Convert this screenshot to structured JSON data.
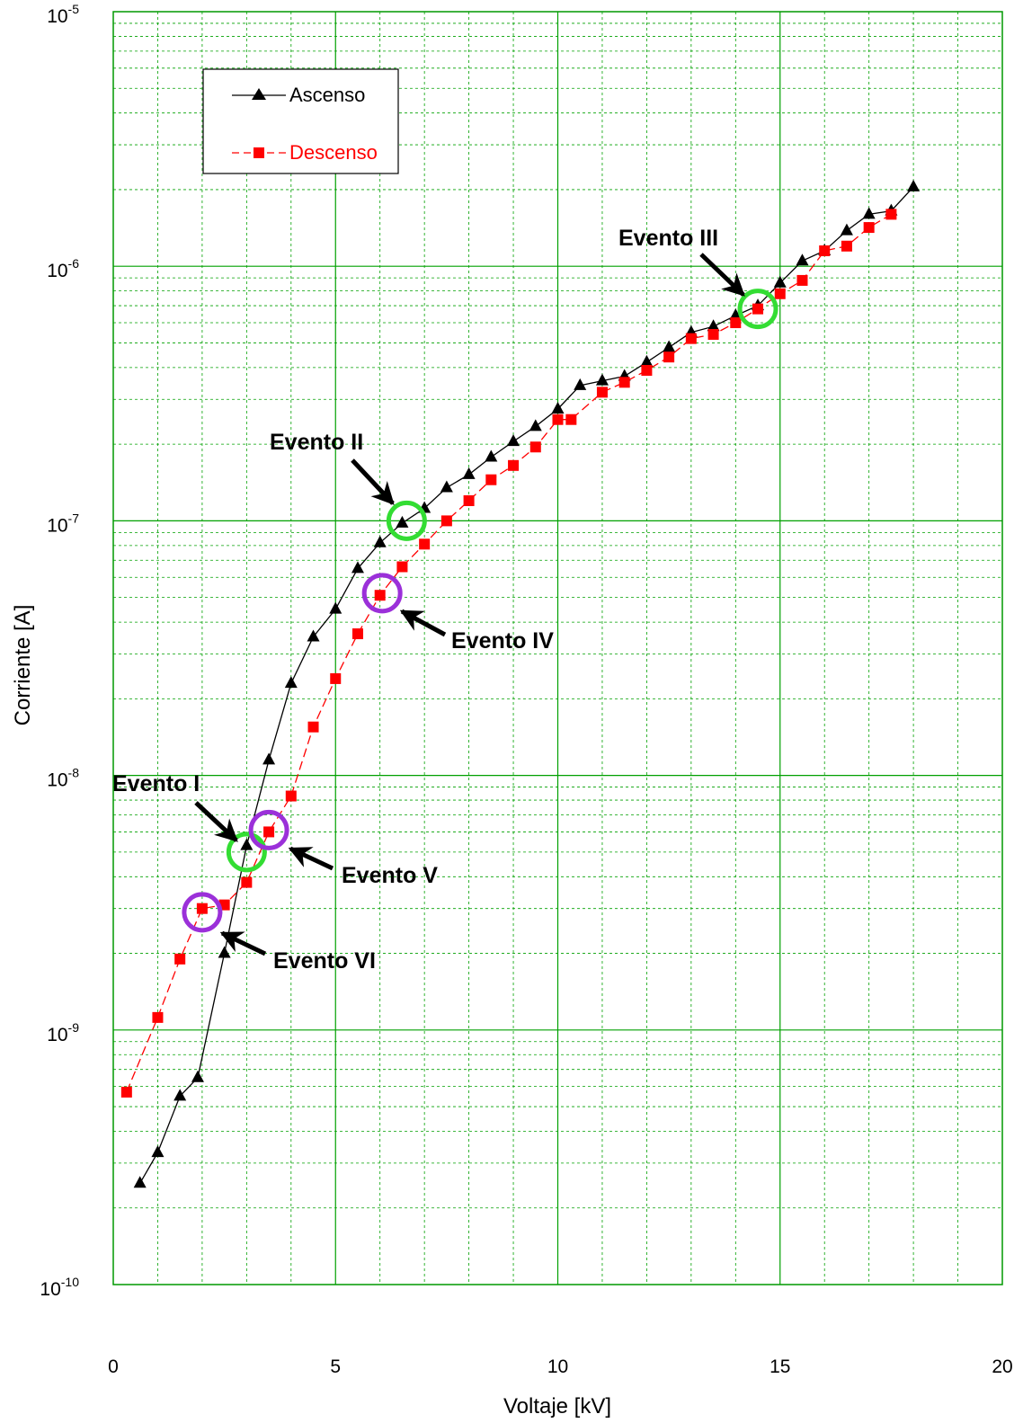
{
  "chart_data": {
    "type": "line",
    "xlabel": "Voltaje [kV]",
    "ylabel": "Corriente [A]",
    "xlim": [
      0,
      20
    ],
    "ylim": [
      1e-10,
      1e-05
    ],
    "yscale": "log",
    "x_ticks": [
      "0",
      "5",
      "10",
      "15",
      "20"
    ],
    "y_ticks": [
      {
        "base": "10",
        "exp": "-10"
      },
      {
        "base": "10",
        "exp": "-9"
      },
      {
        "base": "10",
        "exp": "-8"
      },
      {
        "base": "10",
        "exp": "-7"
      },
      {
        "base": "10",
        "exp": "-6"
      },
      {
        "base": "10",
        "exp": "-5"
      }
    ],
    "grid": true,
    "grid_color": "#00a000",
    "legend_placement": "top-left",
    "series": [
      {
        "name": "Ascenso",
        "color": "#000000",
        "marker": "triangle",
        "x": [
          0.6,
          1.0,
          1.5,
          1.9,
          2.5,
          3.0,
          3.5,
          4.0,
          4.5,
          5.0,
          5.5,
          6.0,
          6.5,
          7.0,
          7.5,
          8.0,
          8.5,
          9.0,
          9.5,
          10.0,
          10.5,
          11.0,
          11.5,
          12.0,
          12.5,
          13.0,
          13.5,
          14.0,
          14.5,
          15.0,
          15.5,
          16.0,
          16.5,
          17.0,
          17.5,
          18.0
        ],
        "y": [
          2.5e-10,
          3.3e-10,
          5.5e-10,
          6.5e-10,
          2e-09,
          5.3e-09,
          1.15e-08,
          2.3e-08,
          3.5e-08,
          4.5e-08,
          6.5e-08,
          8.2e-08,
          9.8e-08,
          1.12e-07,
          1.35e-07,
          1.52e-07,
          1.78e-07,
          2.05e-07,
          2.35e-07,
          2.75e-07,
          3.4e-07,
          3.55e-07,
          3.7e-07,
          4.2e-07,
          4.8e-07,
          5.5e-07,
          5.8e-07,
          6.4e-07,
          7e-07,
          8.6e-07,
          1.05e-06,
          1.15e-06,
          1.38e-06,
          1.6e-06,
          1.65e-06,
          2.05e-06
        ]
      },
      {
        "name": "Descenso",
        "color": "#ff0000",
        "marker": "square",
        "x": [
          0.3,
          1.0,
          1.5,
          2.0,
          2.5,
          3.0,
          3.5,
          4.0,
          4.5,
          5.0,
          5.5,
          6.0,
          6.5,
          7.0,
          7.5,
          8.0,
          8.5,
          9.0,
          9.5,
          10.0,
          10.3,
          11.0,
          11.5,
          12.0,
          12.5,
          13.0,
          13.5,
          14.0,
          14.5,
          15.0,
          15.5,
          16.0,
          16.5,
          17.0,
          17.5
        ],
        "y": [
          5.7e-10,
          1.12e-09,
          1.9e-09,
          3e-09,
          3.1e-09,
          3.8e-09,
          6e-09,
          8.3e-09,
          1.55e-08,
          2.4e-08,
          3.6e-08,
          5.1e-08,
          6.6e-08,
          8.1e-08,
          1e-07,
          1.2e-07,
          1.45e-07,
          1.65e-07,
          1.95e-07,
          2.5e-07,
          2.5e-07,
          3.2e-07,
          3.5e-07,
          3.9e-07,
          4.4e-07,
          5.2e-07,
          5.4e-07,
          6e-07,
          6.8e-07,
          7.8e-07,
          8.8e-07,
          1.15e-06,
          1.2e-06,
          1.42e-06,
          1.6e-06
        ]
      }
    ],
    "annotations": [
      {
        "label": "Evento I",
        "circle_x": 3.0,
        "circle_y": 5e-09,
        "circle_color": "#33dd33"
      },
      {
        "label": "Evento II",
        "circle_x": 6.6,
        "circle_y": 1e-07,
        "circle_color": "#33dd33"
      },
      {
        "label": "Evento III",
        "circle_x": 14.5,
        "circle_y": 6.8e-07,
        "circle_color": "#33dd33"
      },
      {
        "label": "Evento IV",
        "circle_x": 6.05,
        "circle_y": 5.2e-08,
        "circle_color": "#9b30d9"
      },
      {
        "label": "Evento V",
        "circle_x": 3.5,
        "circle_y": 6.1e-09,
        "circle_color": "#9b30d9"
      },
      {
        "label": "Evento VI",
        "circle_x": 2.0,
        "circle_y": 2.9e-09,
        "circle_color": "#9b30d9"
      }
    ]
  }
}
